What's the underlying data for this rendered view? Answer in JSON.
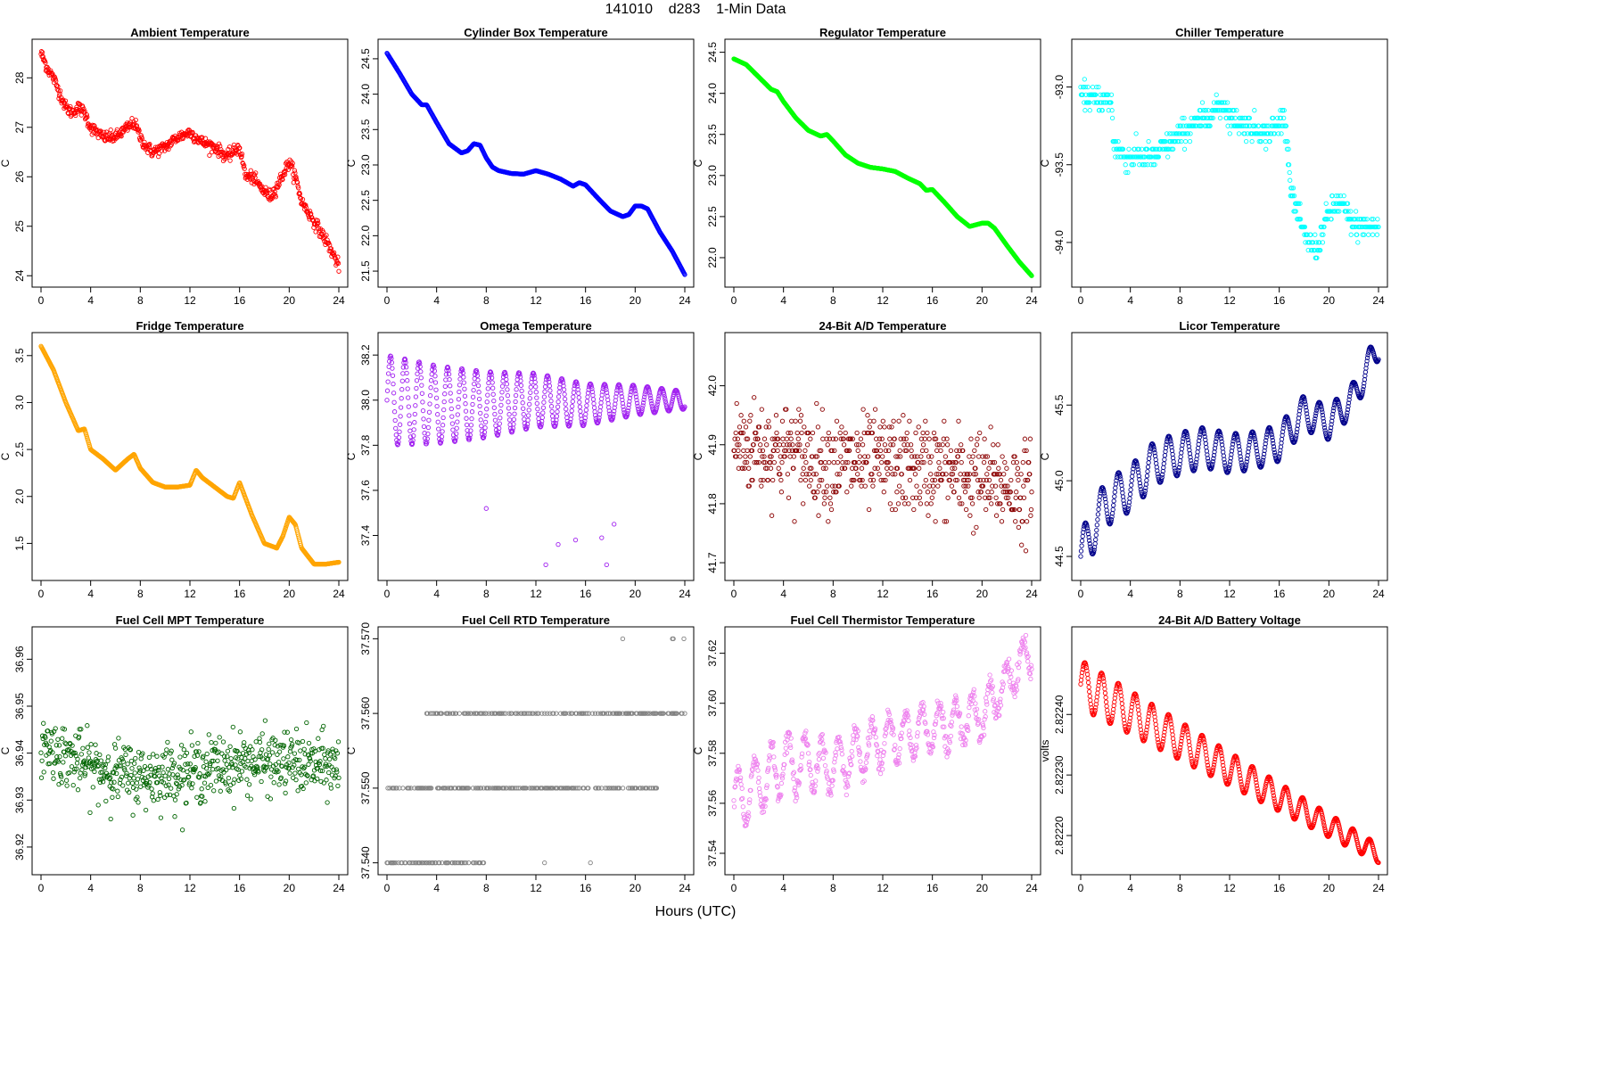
{
  "header": {
    "title": "141010    d283    1-Min Data"
  },
  "x_axis_title": "Hours (UTC)",
  "chart_data": [
    {
      "type": "scatter",
      "title": "Ambient Temperature",
      "ylabel": "C",
      "color": "#ff0000",
      "xlim": [
        0,
        24
      ],
      "xticks": [
        0,
        4,
        8,
        12,
        16,
        20,
        24
      ],
      "ylim": [
        23.95,
        28.6
      ],
      "yticks": [
        24,
        25,
        26,
        27,
        28
      ],
      "ytick_labels": [
        "24",
        "25",
        "26",
        "27",
        "28"
      ],
      "series": [
        {
          "x": [
            0,
            0.5,
            1,
            1.5,
            2,
            2.5,
            3,
            3.5,
            4,
            5,
            6,
            7,
            7.5,
            8,
            8.5,
            9,
            10,
            11,
            12,
            13,
            14,
            15,
            16,
            16.5,
            17,
            18,
            18.5,
            19,
            20,
            20.5,
            21,
            22,
            23,
            24
          ],
          "y": [
            28.5,
            28.2,
            28.0,
            27.7,
            27.4,
            27.3,
            27.4,
            27.3,
            27.0,
            26.8,
            26.8,
            27.0,
            27.1,
            26.8,
            26.6,
            26.5,
            26.6,
            26.8,
            26.9,
            26.7,
            26.6,
            26.4,
            26.6,
            26.0,
            26.0,
            25.7,
            25.6,
            25.8,
            26.3,
            26.0,
            25.5,
            25.1,
            24.7,
            24.2
          ]
        }
      ],
      "noise": 0.12
    },
    {
      "type": "scatter",
      "title": "Cylinder Box Temperature",
      "ylabel": "C",
      "color": "#0000ff",
      "xlim": [
        0,
        24
      ],
      "xticks": [
        0,
        4,
        8,
        12,
        16,
        20,
        24
      ],
      "ylim": [
        21.4,
        24.65
      ],
      "yticks": [
        21.5,
        22.0,
        22.5,
        23.0,
        23.5,
        24.0,
        24.5
      ],
      "ytick_labels": [
        "21.5",
        "22.0",
        "22.5",
        "23.0",
        "23.5",
        "24.0",
        "24.5"
      ],
      "series": [
        {
          "x": [
            0,
            1,
            2,
            2.8,
            3.2,
            4,
            5,
            6,
            6.5,
            7,
            7.5,
            8,
            8.5,
            9,
            10,
            11,
            12,
            13,
            14,
            15,
            15.5,
            16,
            17,
            18,
            19,
            19.5,
            20,
            20.5,
            21,
            22,
            23,
            24
          ],
          "y": [
            24.58,
            24.3,
            24.0,
            23.85,
            23.85,
            23.6,
            23.3,
            23.17,
            23.2,
            23.3,
            23.28,
            23.1,
            22.97,
            22.92,
            22.88,
            22.87,
            22.92,
            22.87,
            22.8,
            22.7,
            22.75,
            22.72,
            22.53,
            22.35,
            22.27,
            22.3,
            22.42,
            22.42,
            22.38,
            22.05,
            21.78,
            21.45
          ]
        }
      ],
      "noise": 0.0
    },
    {
      "type": "scatter",
      "title": "Regulator Temperature",
      "ylabel": "C",
      "color": "#00ff00",
      "xlim": [
        0,
        24
      ],
      "xticks": [
        0,
        4,
        8,
        12,
        16,
        20,
        24
      ],
      "ylim": [
        21.75,
        24.55
      ],
      "yticks": [
        22.0,
        22.5,
        23.0,
        23.5,
        24.0,
        24.5
      ],
      "ytick_labels": [
        "22.0",
        "22.5",
        "23.0",
        "23.5",
        "24.0",
        "24.5"
      ],
      "series": [
        {
          "x": [
            0,
            1,
            2,
            3,
            3.5,
            4,
            5,
            6,
            7,
            7.5,
            8,
            9,
            10,
            11,
            12,
            13,
            14,
            15,
            15.5,
            16,
            17,
            18,
            19,
            20,
            20.5,
            21,
            22,
            23,
            24
          ],
          "y": [
            24.42,
            24.35,
            24.2,
            24.05,
            24.02,
            23.9,
            23.7,
            23.55,
            23.48,
            23.5,
            23.42,
            23.25,
            23.15,
            23.1,
            23.08,
            23.05,
            22.97,
            22.9,
            22.82,
            22.83,
            22.67,
            22.5,
            22.38,
            22.42,
            22.42,
            22.36,
            22.15,
            21.95,
            21.78
          ]
        }
      ],
      "noise": 0.0
    },
    {
      "type": "scatter",
      "title": "Chiller Temperature",
      "ylabel": "C",
      "color": "#00ffff",
      "xlim": [
        0,
        24
      ],
      "xticks": [
        0,
        4,
        8,
        12,
        16,
        20,
        24
      ],
      "ylim": [
        -94.23,
        -92.75
      ],
      "yticks": [
        -94.0,
        -93.5,
        -93.0
      ],
      "ytick_labels": [
        "-94.0",
        "-93.5",
        "-93.0"
      ],
      "series": [
        {
          "x": [
            0,
            2.5,
            2.6,
            3.5,
            6.0,
            6.5,
            7.5,
            8.0,
            10.0,
            11.5,
            12.0,
            13.5,
            15.0,
            16.5,
            17.0,
            18.0,
            19.0,
            20.0,
            21.0,
            22.0,
            24
          ],
          "y": [
            -93.05,
            -93.1,
            -93.35,
            -93.45,
            -93.45,
            -93.4,
            -93.35,
            -93.3,
            -93.2,
            -93.1,
            -93.2,
            -93.25,
            -93.3,
            -93.2,
            -93.7,
            -93.95,
            -94.05,
            -93.8,
            -93.75,
            -93.9,
            -93.9
          ]
        }
      ],
      "noise": 0.08,
      "quantize": 0.05
    },
    {
      "type": "scatter",
      "title": "Fridge Temperature",
      "ylabel": "C",
      "color": "#ffa500",
      "xlim": [
        0,
        24
      ],
      "xticks": [
        0,
        4,
        8,
        12,
        16,
        20,
        24
      ],
      "ylim": [
        1.2,
        3.65
      ],
      "yticks": [
        1.5,
        2.0,
        2.5,
        3.0,
        3.5
      ],
      "ytick_labels": [
        "1.5",
        "2.0",
        "2.5",
        "3.0",
        "3.5"
      ],
      "series": [
        {
          "x": [
            0,
            1,
            2,
            3,
            3.5,
            4,
            5,
            6,
            7,
            7.5,
            8,
            9,
            10,
            11,
            12,
            12.5,
            13,
            14,
            15,
            15.5,
            16,
            17,
            18,
            19,
            19.5,
            20,
            20.5,
            21,
            22,
            23,
            24
          ],
          "y": [
            3.6,
            3.35,
            3.0,
            2.7,
            2.72,
            2.5,
            2.4,
            2.28,
            2.4,
            2.45,
            2.3,
            2.15,
            2.1,
            2.1,
            2.12,
            2.28,
            2.2,
            2.1,
            2.0,
            1.98,
            2.15,
            1.8,
            1.5,
            1.45,
            1.58,
            1.78,
            1.7,
            1.45,
            1.28,
            1.28,
            1.3
          ]
        }
      ],
      "noise": 0.0
    },
    {
      "type": "scatter",
      "title": "Omega Temperature",
      "ylabel": "C",
      "color": "#a020f0",
      "xlim": [
        0,
        24
      ],
      "xticks": [
        0,
        4,
        8,
        12,
        16,
        20,
        24
      ],
      "ylim": [
        37.24,
        38.26
      ],
      "yticks": [
        37.4,
        37.6,
        37.8,
        38.0,
        38.2
      ],
      "ytick_labels": [
        "37.4",
        "37.6",
        "37.8",
        "38.0",
        "38.2"
      ],
      "series": [
        {
          "x": [
            0,
            4,
            8,
            12,
            16,
            20,
            24
          ],
          "y": [
            38.0,
            37.98,
            37.98,
            38.0,
            37.98,
            38.0,
            38.0
          ]
        }
      ],
      "oscillation": {
        "amplitude_start": 0.2,
        "amplitude_end": 0.04,
        "period_hours": 1.15
      },
      "outliers": [
        {
          "x": 8.0,
          "y": 37.52
        },
        {
          "x": 12.8,
          "y": 37.27
        },
        {
          "x": 13.8,
          "y": 37.36
        },
        {
          "x": 15.2,
          "y": 37.38
        },
        {
          "x": 17.3,
          "y": 37.39
        },
        {
          "x": 17.7,
          "y": 37.27
        },
        {
          "x": 18.3,
          "y": 37.45
        }
      ]
    },
    {
      "type": "scatter",
      "title": "24-Bit A/D Temperature",
      "ylabel": "C",
      "color": "#8b0000",
      "xlim": [
        0,
        24
      ],
      "xticks": [
        0,
        4,
        8,
        12,
        16,
        20,
        24
      ],
      "ylim": [
        41.685,
        42.075
      ],
      "yticks": [
        41.7,
        41.8,
        41.9,
        42.0
      ],
      "ytick_labels": [
        "41.7",
        "41.8",
        "41.9",
        "42.0"
      ],
      "series": [
        {
          "x": [
            0,
            4,
            8,
            12,
            16,
            20,
            24
          ],
          "y": [
            41.9,
            41.89,
            41.87,
            41.87,
            41.86,
            41.84,
            41.82
          ]
        }
      ],
      "noise": 0.08,
      "quantize": 0.01
    },
    {
      "type": "scatter",
      "title": "Licor Temperature",
      "ylabel": "C",
      "color": "#00008b",
      "xlim": [
        0,
        24
      ],
      "xticks": [
        0,
        4,
        8,
        12,
        16,
        20,
        24
      ],
      "ylim": [
        44.4,
        45.92
      ],
      "yticks": [
        44.5,
        45.0,
        45.5
      ],
      "ytick_labels": [
        "44.5",
        "45.0",
        "45.5"
      ],
      "series": [
        {
          "x": [
            0,
            2,
            4,
            6,
            8,
            10,
            12,
            14,
            16,
            18,
            20,
            22,
            24
          ],
          "y": [
            44.5,
            44.85,
            44.95,
            45.12,
            45.18,
            45.22,
            45.18,
            45.2,
            45.25,
            45.45,
            45.38,
            45.55,
            45.9
          ]
        }
      ],
      "oscillation": {
        "amplitude_start": 0.16,
        "amplitude_end": 0.1,
        "period_hours": 1.35
      },
      "noise": 0.0
    },
    {
      "type": "scatter",
      "title": "Fuel Cell MPT Temperature",
      "ylabel": "C",
      "color": "#006400",
      "xlim": [
        0,
        24
      ],
      "xticks": [
        0,
        4,
        8,
        12,
        16,
        20,
        24
      ],
      "ylim": [
        36.916,
        36.965
      ],
      "yticks": [
        36.92,
        36.93,
        36.94,
        36.95,
        36.96
      ],
      "ytick_labels": [
        "36.92",
        "36.93",
        "36.94",
        "36.95",
        "36.96"
      ],
      "series": [
        {
          "x": [
            0,
            4,
            8,
            12,
            16,
            20,
            24
          ],
          "y": [
            36.942,
            36.937,
            36.935,
            36.936,
            36.938,
            36.938,
            36.937
          ]
        }
      ],
      "noise": 0.0065
    },
    {
      "type": "scatter",
      "title": "Fuel Cell RTD Temperature",
      "ylabel": "C",
      "color": "#808080",
      "xlim": [
        0,
        24
      ],
      "xticks": [
        0,
        4,
        8,
        12,
        16,
        20,
        24
      ],
      "ylim": [
        37.5396,
        37.5704
      ],
      "yticks": [
        37.54,
        37.55,
        37.56,
        37.57
      ],
      "ytick_labels": [
        "37.540",
        "37.550",
        "37.560",
        "37.570"
      ],
      "levels": [
        {
          "y": 37.54,
          "x_from": 0.0,
          "x_to": 7.8
        },
        {
          "y": 37.55,
          "x_from": 0.0,
          "x_to": 21.8
        },
        {
          "y": 37.56,
          "x_from": 3.2,
          "x_to": 24.0
        },
        {
          "y": 37.57,
          "x_from": 23.0,
          "x_to": 24.0
        }
      ],
      "extra_points": [
        {
          "x": 12.7,
          "y": 37.54
        },
        {
          "x": 16.4,
          "y": 37.54
        },
        {
          "x": 19.0,
          "y": 37.57
        }
      ]
    },
    {
      "type": "scatter",
      "title": "Fuel Cell Thermistor Temperature",
      "ylabel": "C",
      "color": "#ee82ee",
      "xlim": [
        0,
        24
      ],
      "xticks": [
        0,
        4,
        8,
        12,
        16,
        20,
        24
      ],
      "ylim": [
        37.535,
        37.627
      ],
      "yticks": [
        37.54,
        37.56,
        37.58,
        37.6,
        37.62
      ],
      "ytick_labels": [
        "37.54",
        "37.56",
        "37.58",
        "37.60",
        "37.62"
      ],
      "series": [
        {
          "x": [
            0,
            4,
            8,
            12,
            16,
            20,
            24
          ],
          "y": [
            37.56,
            37.575,
            37.575,
            37.585,
            37.59,
            37.595,
            37.622
          ]
        }
      ],
      "oscillation": {
        "amplitude_start": 0.012,
        "amplitude_end": 0.008,
        "period_hours": 1.35
      },
      "noise": 0.004
    },
    {
      "type": "scatter",
      "title": "24-Bit A/D Battery Voltage",
      "ylabel": "volts",
      "color": "#ff0000",
      "xlim": [
        0,
        24
      ],
      "xticks": [
        0,
        4,
        8,
        12,
        16,
        20,
        24
      ],
      "ylim": [
        2.82215,
        2.82253
      ],
      "yticks": [
        2.8222,
        2.8223,
        2.8224
      ],
      "ytick_labels": [
        "2.82220",
        "2.82230",
        "2.82240"
      ],
      "series": [
        {
          "x": [
            0,
            24
          ],
          "y": [
            2.82245,
            2.82217
          ]
        }
      ],
      "oscillation": {
        "amplitude_start": 4e-05,
        "amplitude_end": 1.5e-05,
        "period_hours": 1.35
      },
      "noise": 0.0
    }
  ]
}
